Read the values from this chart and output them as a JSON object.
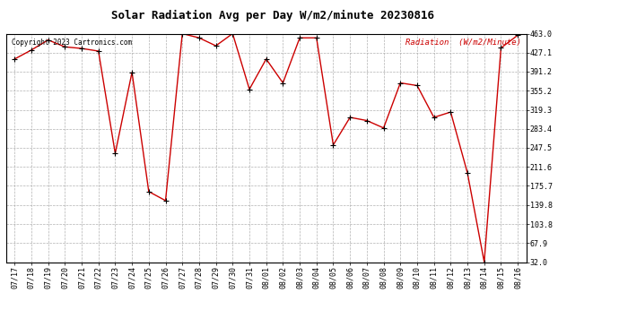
{
  "title": "Solar Radiation Avg per Day W/m2/minute 20230816",
  "copyright": "Copyright 2023 Cartronics.com",
  "legend_label": "Radiation  (W/m2/Minute)",
  "dates": [
    "07/17",
    "07/18",
    "07/19",
    "07/20",
    "07/21",
    "07/22",
    "07/23",
    "07/24",
    "07/25",
    "07/26",
    "07/27",
    "07/28",
    "07/29",
    "07/30",
    "07/31",
    "08/01",
    "08/02",
    "08/03",
    "08/04",
    "08/05",
    "08/06",
    "08/07",
    "08/08",
    "08/09",
    "08/10",
    "08/11",
    "08/12",
    "08/13",
    "08/14",
    "08/15",
    "08/16"
  ],
  "values": [
    415.0,
    432.0,
    451.0,
    438.0,
    435.0,
    430.0,
    237.0,
    390.0,
    165.0,
    148.0,
    463.0,
    455.0,
    440.0,
    463.0,
    358.0,
    415.0,
    370.0,
    455.0,
    455.0,
    253.0,
    305.0,
    299.0,
    285.0,
    370.0,
    365.0,
    305.0,
    315.0,
    200.0,
    32.0,
    436.0,
    460.0
  ],
  "yticks": [
    32.0,
    67.9,
    103.8,
    139.8,
    175.7,
    211.6,
    247.5,
    283.4,
    319.3,
    355.2,
    391.2,
    427.1,
    463.0
  ],
  "ymin": 32.0,
  "ymax": 463.0,
  "line_color": "#cc0000",
  "marker_color": "#000000",
  "bg_color": "#ffffff",
  "grid_color": "#aaaaaa",
  "title_fontsize": 9,
  "tick_fontsize": 6,
  "copyright_fontsize": 5.5,
  "legend_fontsize": 6.5,
  "copyright_color": "#000000",
  "legend_color": "#cc0000"
}
